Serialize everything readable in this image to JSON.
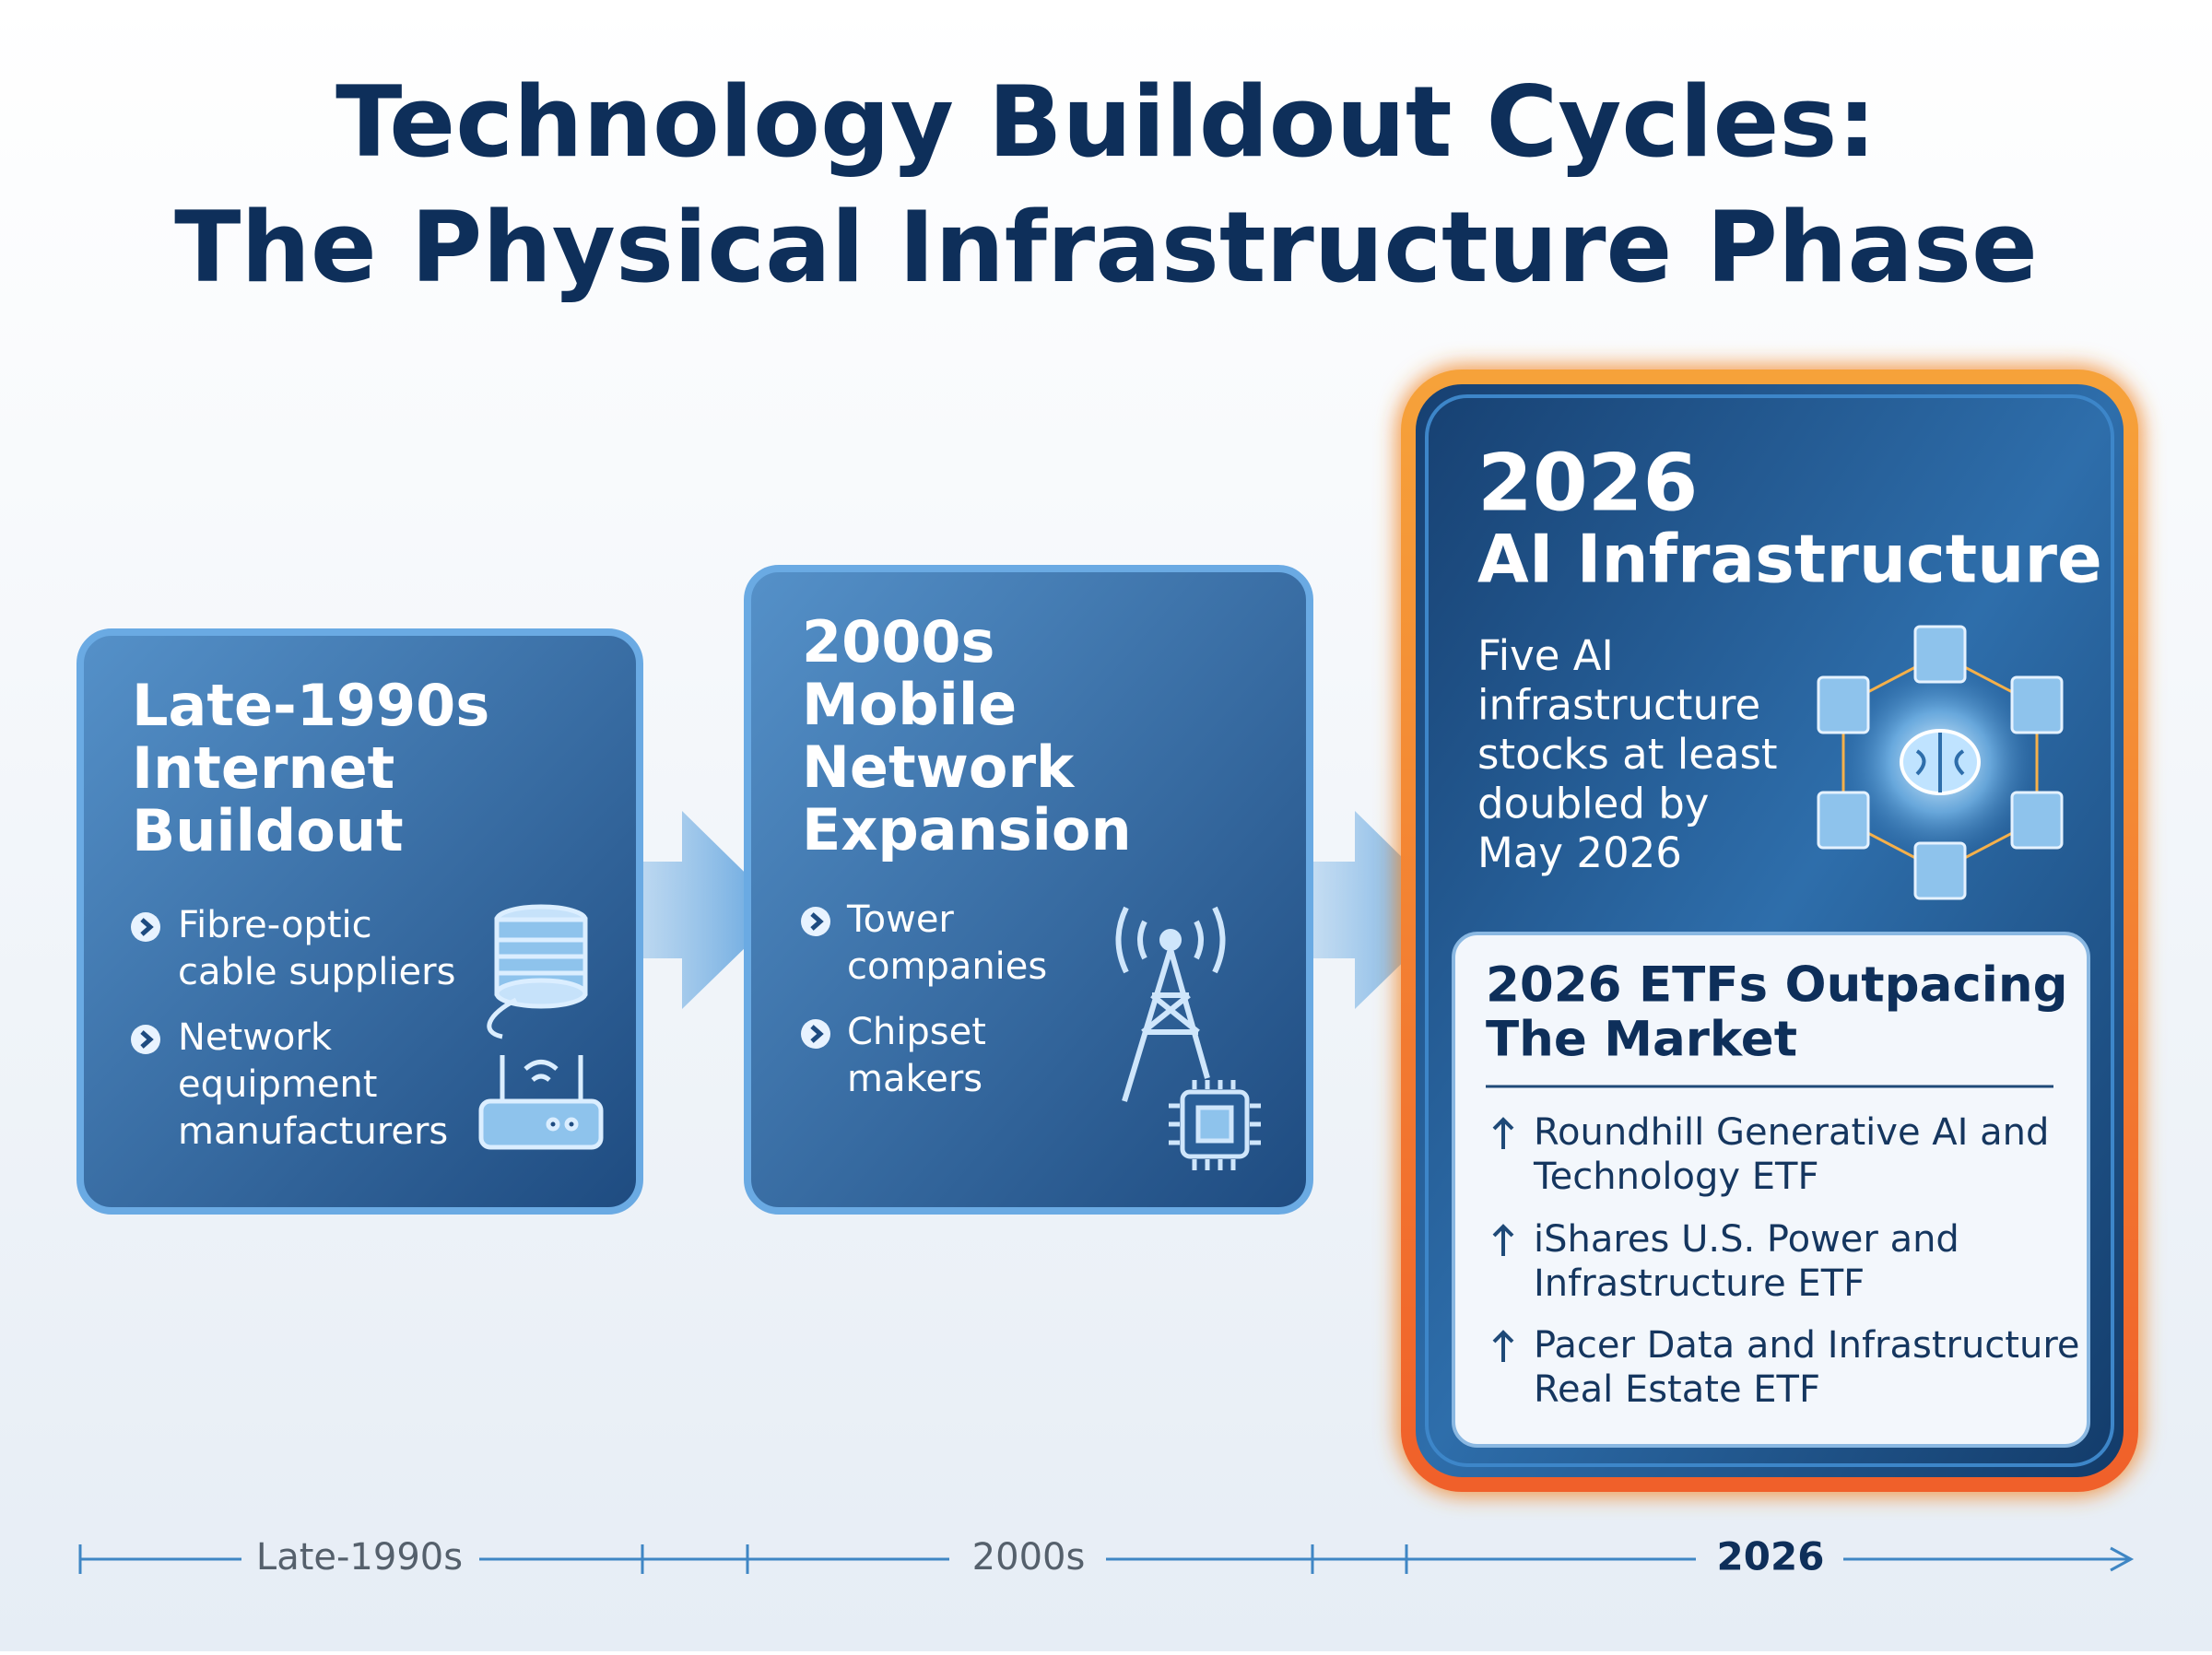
{
  "title": {
    "line1": "Technology Buildout Cycles:",
    "line2": "The Physical Infrastructure Phase"
  },
  "cards": [
    {
      "heading": [
        "Late-1990s",
        "Internet",
        "Buildout"
      ],
      "items": [
        [
          "Fibre-optic",
          "cable suppliers"
        ],
        [
          "Network",
          "equipment",
          "manufacturers"
        ]
      ]
    },
    {
      "heading": [
        "2000s",
        "Mobile",
        "Network",
        "Expansion"
      ],
      "items": [
        [
          "Tower",
          "companies"
        ],
        [
          "Chipset",
          "makers"
        ]
      ]
    }
  ],
  "highlight": {
    "heading": [
      "2026",
      "AI Infrastructure"
    ],
    "description": [
      "Five AI",
      "infrastructure",
      "stocks at least",
      "doubled by",
      "May 2026"
    ],
    "etf_box": {
      "title": [
        "2026 ETFs Outpacing",
        "The Market"
      ],
      "items": [
        [
          "Roundhill Generative AI and",
          "Technology ETF"
        ],
        [
          "iShares U.S. Power and",
          "Infrastructure ETF"
        ],
        [
          "Pacer Data and Infrastructure",
          "Real Estate ETF"
        ]
      ]
    }
  },
  "timeline": {
    "labels": [
      "Late-1990s",
      "2000s",
      "2026"
    ]
  }
}
